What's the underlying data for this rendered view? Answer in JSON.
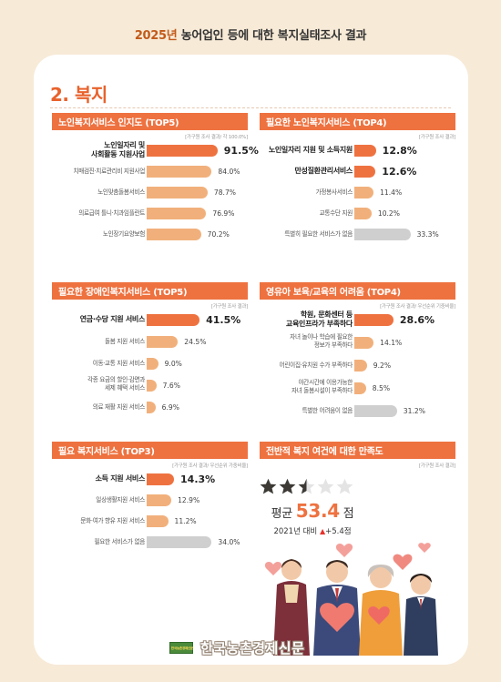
{
  "header": {
    "title_year": "2025년",
    "title_rest": "농어업인 등에 대한 복지실태조사 결과"
  },
  "section": {
    "title": "2. 복지"
  },
  "colors": {
    "accent": "#ee7240",
    "light_bar": "#f1b07b",
    "gray_bar": "#cfcfcf",
    "background": "#f7ead7"
  },
  "chart_data": [
    {
      "id": "elderly-awareness",
      "type": "bar",
      "title": "노인복지서비스 인지도 (TOP5)",
      "note": "[가구원 조사 결과/ 각 100.0%]",
      "unit": "%",
      "categories": [
        "노인일자리 및\n사회활동 지원사업",
        "치매검진·치료관리비 지원사업",
        "노인맞춤돌봄서비스",
        "의료급여 틀니·치과임플란트",
        "노인장기요양보험"
      ],
      "values": [
        91.5,
        84.0,
        78.7,
        76.9,
        70.2
      ],
      "labels": [
        "91.5%",
        "84.0%",
        "78.7%",
        "76.9%",
        "70.2%"
      ],
      "highlight": [
        0
      ],
      "gray": []
    },
    {
      "id": "elderly-needed",
      "type": "bar",
      "title": "필요한 노인복지서비스 (TOP4)",
      "note": "[가구원 조사 결과]",
      "unit": "%",
      "categories": [
        "노인일자리 지원 및 소득지원",
        "만성질환관리서비스",
        "가정봉사서비스",
        "교통수단 지원",
        "특별히 필요한 서비스가 없음"
      ],
      "values": [
        12.8,
        12.6,
        11.4,
        10.2,
        33.3
      ],
      "labels": [
        "12.8%",
        "12.6%",
        "11.4%",
        "10.2%",
        "33.3%"
      ],
      "highlight": [
        0,
        1
      ],
      "gray": [
        4
      ]
    },
    {
      "id": "disability-needed",
      "type": "bar",
      "title": "필요한 장애인복지서비스 (TOP5)",
      "note": "[가구원 조사 결과]",
      "unit": "%",
      "categories": [
        "연금·수당 지원 서비스",
        "돌봄 지원 서비스",
        "이동·교통 지원 서비스",
        "각종 요금의 할인·감면과\n세제 혜택 서비스",
        "의료 재활 지원 서비스"
      ],
      "values": [
        41.5,
        24.5,
        9.0,
        7.6,
        6.9
      ],
      "labels": [
        "41.5%",
        "24.5%",
        "9.0%",
        "7.6%",
        "6.9%"
      ],
      "highlight": [
        0
      ],
      "gray": []
    },
    {
      "id": "childcare-difficulty",
      "type": "bar",
      "title": "영유아 보육/교육의 어려움 (TOP4)",
      "note": "[가구원 조사 결과/ 우선순위 기중비율]",
      "unit": "%",
      "categories": [
        "학원, 문화센터 등\n교육인프라가 부족하다",
        "자녀 놀이나 학습에 필요한\n정보가 부족하다",
        "어린이집·유치원 수가 부족하다",
        "야간시간에 이용가능한\n자녀 돌봄시설이 부족하다",
        "특별한 어려움이 없음"
      ],
      "values": [
        28.6,
        14.1,
        9.2,
        8.5,
        31.2
      ],
      "labels": [
        "28.6%",
        "14.1%",
        "9.2%",
        "8.5%",
        "31.2%"
      ],
      "highlight": [
        0
      ],
      "gray": [
        4
      ]
    },
    {
      "id": "needed-welfare",
      "type": "bar",
      "title": "필요 복지서비스 (TOP3)",
      "note": "[가구원 조사 결과/ 우선순위 가중비율]",
      "unit": "%",
      "categories": [
        "소득 지원 서비스",
        "일상생활지원 서비스",
        "문화·여가 향유 지원 서비스",
        "필요한 서비스가 없음"
      ],
      "values": [
        14.3,
        12.9,
        11.2,
        34.0
      ],
      "labels": [
        "14.3%",
        "12.9%",
        "11.2%",
        "34.0%"
      ],
      "highlight": [
        0
      ],
      "gray": [
        3
      ]
    }
  ],
  "satisfaction": {
    "title": "전반적 복지 여건에 대한 만족도",
    "note": "[가구원 조사 결과]",
    "stars_total": 5,
    "stars_rating": 2.5,
    "avg_label": "평균",
    "avg_value": "53.4",
    "avg_unit": "점",
    "compare_prefix": "2021년 대비",
    "compare_arrow": "▲",
    "compare_value": "+5.4점"
  },
  "footer": {
    "logo_text": "한국농촌경제신문",
    "name": "한국농촌경제신문"
  }
}
